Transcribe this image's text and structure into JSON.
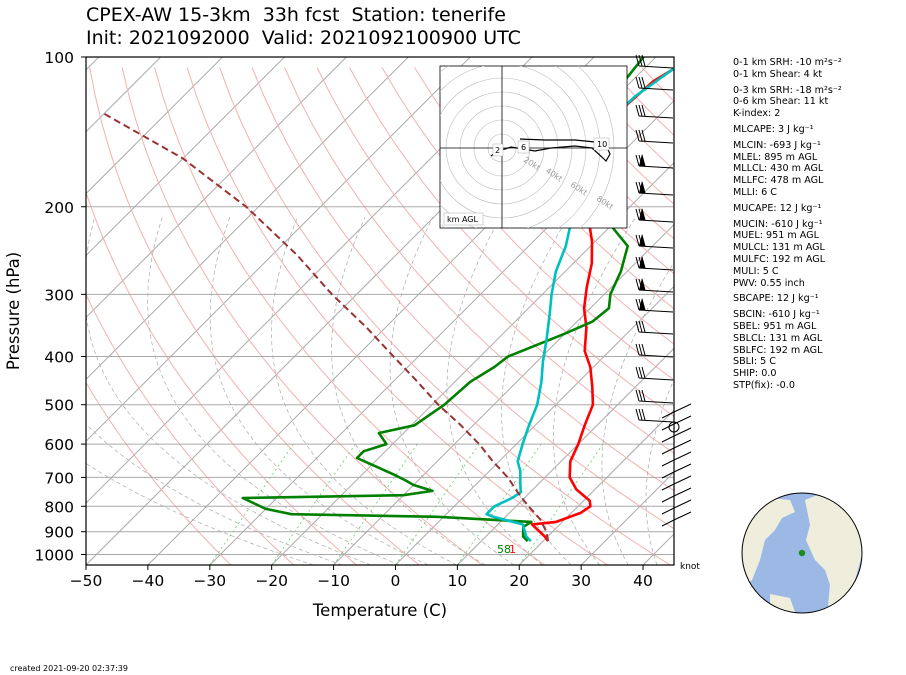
{
  "header": {
    "title_line1": "CPEX-AW 15-3km  33h fcst  Station: tenerife",
    "title_line2": "Init: 2021092000  Valid: 2021092100900 UTC"
  },
  "chart_data": {
    "type": "line",
    "xlabel": "Temperature (C)",
    "ylabel": "Pressure (hPa)",
    "xlim": [
      -50,
      45
    ],
    "ylim": [
      1050,
      100
    ],
    "y_scale": "log",
    "xticks": [
      "−50",
      "−40",
      "−30",
      "−20",
      "−10",
      "0",
      "10",
      "20",
      "30",
      "40"
    ],
    "yticks": [
      "100",
      "200",
      "300",
      "400",
      "500",
      "600",
      "700",
      "800",
      "900",
      "1000"
    ],
    "grid": true,
    "skew_isotherms": true,
    "series": [
      {
        "key": "temperature",
        "color": "#ff0000",
        "points": [
          [
            20.8,
            940
          ],
          [
            19.5,
            920
          ],
          [
            15.5,
            870
          ],
          [
            19,
            860
          ],
          [
            21.5,
            825
          ],
          [
            22,
            800
          ],
          [
            21,
            780
          ],
          [
            17,
            740
          ],
          [
            14,
            700
          ],
          [
            11.5,
            650
          ],
          [
            10,
            600
          ],
          [
            8,
            550
          ],
          [
            6,
            500
          ],
          [
            3,
            460
          ],
          [
            -0.5,
            420
          ],
          [
            -4,
            390
          ],
          [
            -7.5,
            350
          ],
          [
            -11,
            320
          ],
          [
            -14,
            290
          ],
          [
            -17,
            260
          ],
          [
            -20.5,
            235
          ],
          [
            -25,
            210
          ],
          [
            -28,
            190
          ],
          [
            -32,
            170
          ],
          [
            -35.5,
            150
          ],
          [
            -37,
            125
          ],
          [
            -36.5,
            112
          ],
          [
            -34,
            100
          ]
        ]
      },
      {
        "key": "dewpoint",
        "color": "#008000",
        "points": [
          [
            17.5,
            940
          ],
          [
            16,
            920
          ],
          [
            14.5,
            880
          ],
          [
            15,
            860
          ],
          [
            -1,
            840
          ],
          [
            -25,
            830
          ],
          [
            -30,
            810
          ],
          [
            -35.5,
            770
          ],
          [
            -10,
            760
          ],
          [
            -6,
            745
          ],
          [
            -10,
            725
          ],
          [
            -12,
            710
          ],
          [
            -15,
            690
          ],
          [
            -23.5,
            640
          ],
          [
            -23.5,
            620
          ],
          [
            -21,
            600
          ],
          [
            -24,
            570
          ],
          [
            -19.5,
            550
          ],
          [
            -18,
            500
          ],
          [
            -17.5,
            450
          ],
          [
            -16,
            420
          ],
          [
            -15.5,
            400
          ],
          [
            -10,
            360
          ],
          [
            -7.5,
            340
          ],
          [
            -7,
            320
          ],
          [
            -9,
            300
          ],
          [
            -11,
            270
          ],
          [
            -14,
            240
          ],
          [
            -19.5,
            220
          ],
          [
            -23,
            200
          ],
          [
            -26,
            185
          ],
          [
            -32,
            160
          ],
          [
            -37,
            140
          ],
          [
            -39.5,
            132
          ],
          [
            -41,
            115
          ],
          [
            -42,
            100
          ]
        ]
      },
      {
        "key": "wetbulb",
        "color": "#00bfbf",
        "points": [
          [
            18,
            940
          ],
          [
            16.5,
            920
          ],
          [
            14,
            870
          ],
          [
            8,
            840
          ],
          [
            6.5,
            830
          ],
          [
            6.5,
            800
          ],
          [
            8,
            770
          ],
          [
            8.5,
            750
          ],
          [
            7,
            720
          ],
          [
            5,
            680
          ],
          [
            3,
            650
          ],
          [
            1,
            600
          ],
          [
            -1,
            550
          ],
          [
            -3,
            500
          ],
          [
            -6,
            450
          ],
          [
            -9,
            410
          ],
          [
            -12,
            370
          ],
          [
            -15.5,
            330
          ],
          [
            -18.5,
            300
          ],
          [
            -21.5,
            270
          ],
          [
            -24,
            240
          ],
          [
            -27,
            215
          ],
          [
            -30,
            195
          ],
          [
            -33.5,
            175
          ],
          [
            -36,
            160
          ],
          [
            -37.5,
            140
          ],
          [
            -37,
            120
          ],
          [
            -34.5,
            100
          ]
        ]
      },
      {
        "key": "parcel",
        "color": "#993333",
        "dashed": true,
        "points": [
          [
            20.8,
            940
          ],
          [
            19,
            900
          ],
          [
            16,
            850
          ],
          [
            12,
            800
          ],
          [
            8,
            750
          ],
          [
            4,
            700
          ],
          [
            -1,
            650
          ],
          [
            -6,
            600
          ],
          [
            -12,
            550
          ],
          [
            -19,
            500
          ],
          [
            -26,
            450
          ],
          [
            -34,
            400
          ],
          [
            -43,
            350
          ],
          [
            -54,
            300
          ],
          [
            -66,
            250
          ],
          [
            -82,
            200
          ],
          [
            -100,
            160
          ],
          [
            -120,
            130
          ]
        ]
      }
    ],
    "surface_labels": [
      "58",
      "1"
    ],
    "wind_unit": "knot",
    "hodograph": {
      "ring_labels": [
        "20kt",
        "40kt",
        "60kt",
        "80kt"
      ],
      "height_labels": [
        "2",
        "6",
        "10"
      ],
      "unit_label": "km AGL"
    }
  },
  "stats": [
    {
      "text": "0-1 km SRH: -10 m²s⁻²"
    },
    {
      "text": "0-1 km Shear: 4 kt"
    },
    {
      "text": "0-3 km SRH: -18 m²s⁻²"
    },
    {
      "text": "0-6 km Shear: 11 kt"
    },
    {
      "text": "K-index: 2"
    },
    {
      "text": "MLCAPE: 3 J kg⁻¹"
    },
    {
      "text": "MLCIN: -693 J kg⁻¹"
    },
    {
      "text": "MLEL: 895 m AGL"
    },
    {
      "text": "MLLCL: 430 m AGL"
    },
    {
      "text": "MLLFC: 478 m AGL"
    },
    {
      "text": "MLLI: 6 C"
    },
    {
      "text": "MUCAPE: 12 J kg⁻¹"
    },
    {
      "text": "MUCIN: -610 J kg⁻¹"
    },
    {
      "text": "MUEL: 951 m AGL"
    },
    {
      "text": "MULCL: 131 m AGL"
    },
    {
      "text": "MULFC: 192 m AGL"
    },
    {
      "text": "MULI: 5 C"
    },
    {
      "text": "PWV: 0.55 inch"
    },
    {
      "text": "SBCAPE: 12 J kg⁻¹"
    },
    {
      "text": "SBCIN: -610 J kg⁻¹"
    },
    {
      "text": "SBEL: 951 m AGL"
    },
    {
      "text": "SBLCL: 131 m AGL"
    },
    {
      "text": "SBLFC: 192 m AGL"
    },
    {
      "text": "SBLI: 5 C"
    },
    {
      "text": "SHIP: 0.0"
    },
    {
      "text": "STP(fix): -0.0"
    }
  ],
  "footer": {
    "created": "created 2021-09-20 02:37:39"
  },
  "colors": {
    "ocean": "#9cb9e6",
    "land": "#efeedc",
    "station": "#1a8c1a"
  }
}
